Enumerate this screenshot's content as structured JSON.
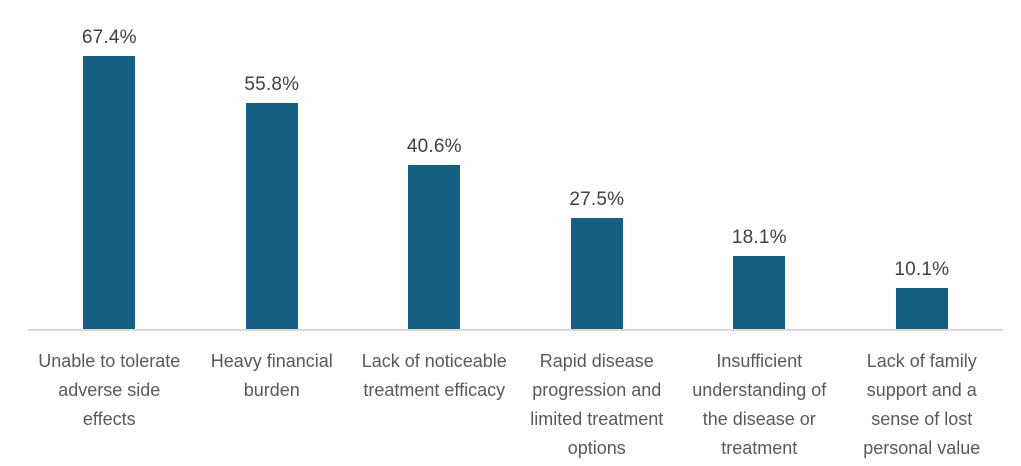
{
  "chart_data": {
    "type": "bar",
    "title": "",
    "xlabel": "",
    "ylabel": "",
    "categories": [
      "Unable to tolerate adverse side effects",
      "Heavy financial burden",
      "Lack of noticeable treatment efficacy",
      "Rapid disease progression and limited treatment options",
      "Insufficient understanding of the disease or treatment",
      "Lack of family support and a sense of lost personal value"
    ],
    "categories_wrapped": [
      [
        "Unable to tolerate",
        "adverse side",
        "effects"
      ],
      [
        "Heavy financial",
        "burden"
      ],
      [
        "Lack of noticeable",
        "treatment efficacy"
      ],
      [
        "Rapid disease",
        "progression and",
        "limited treatment",
        "options"
      ],
      [
        "Insufficient",
        "understanding of",
        "the disease or",
        "treatment"
      ],
      [
        "Lack of family",
        "support and a",
        "sense of lost",
        "personal value"
      ]
    ],
    "values": [
      67.4,
      55.8,
      40.6,
      27.5,
      18.1,
      10.1
    ],
    "data_labels": [
      "67.4%",
      "55.8%",
      "40.6%",
      "27.5%",
      "18.1%",
      "10.1%"
    ],
    "ylim": [
      0,
      80
    ],
    "grid": false,
    "legend": false,
    "bar_color": "#156082",
    "axis_line_color": "#D9D9D9",
    "value_label_color": "#404040",
    "category_label_color": "#595959"
  }
}
